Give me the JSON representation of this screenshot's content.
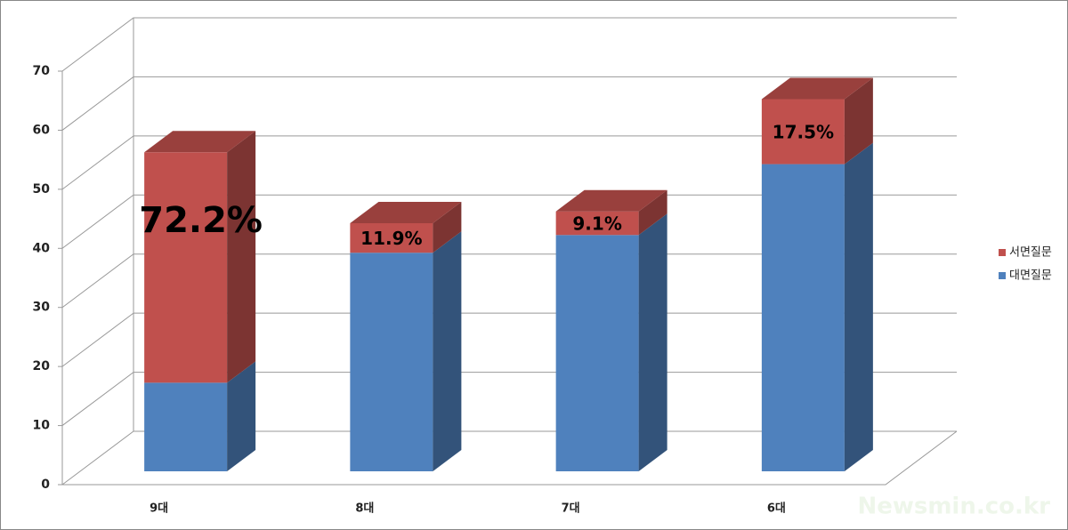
{
  "chart_data": {
    "type": "bar3d_stacked",
    "categories": [
      "9대",
      "8대",
      "7대",
      "6대"
    ],
    "series": [
      {
        "name": "대면질문",
        "color": "#4f81bd",
        "values": [
          15,
          37,
          40,
          52
        ]
      },
      {
        "name": "서면질문",
        "color": "#c0504d",
        "values": [
          39,
          5,
          4,
          11
        ]
      }
    ],
    "annotations": [
      "72.2%",
      "11.9%",
      "9.1%",
      "17.5%"
    ],
    "ylim": [
      0,
      70
    ],
    "yticks": [
      0,
      10,
      20,
      30,
      40,
      50,
      60,
      70
    ],
    "grid": true,
    "legend": "right",
    "watermark": "Newsmin.co.kr"
  }
}
